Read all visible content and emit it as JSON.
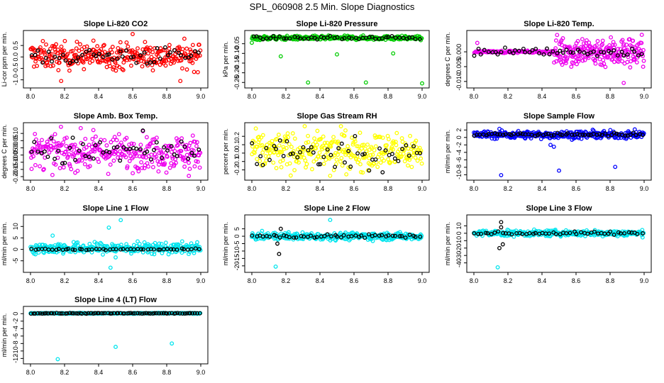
{
  "page_title": "SPL_060908  2.5 Min. Slope Diagnostics",
  "chart_data": [
    {
      "type": "scatter",
      "title": "Slope Li-820 CO2",
      "ylabel": "Li-cor ppm per min.",
      "xlim": [
        8.0,
        9.0
      ],
      "ylim": [
        -1.2,
        1.0
      ],
      "yticks": [
        -1.0,
        -0.5,
        0.0,
        0.5
      ],
      "ytick_labels": [
        "-1.0",
        "-0.5",
        "0.0",
        "0.5"
      ],
      "xticks": [
        8.0,
        8.2,
        8.4,
        8.6,
        8.8,
        9.0
      ],
      "xtick_labels": [
        "8.0",
        "8.2",
        "8.4",
        "8.6",
        "8.8",
        "9.0"
      ],
      "series": [
        {
          "name": "all",
          "color": "#ff0000",
          "center": 0.05,
          "spread": 0.28,
          "count": 320
        },
        {
          "name": "selected",
          "color": "#000000",
          "center": 0.05,
          "spread": 0.2,
          "count": 50
        }
      ],
      "outliers": [
        {
          "x": 8.6,
          "y": 1.0,
          "color": "#ff0000"
        },
        {
          "x": 8.18,
          "y": -1.05,
          "color": "#ff0000"
        },
        {
          "x": 8.88,
          "y": -1.05,
          "color": "#ff0000"
        }
      ]
    },
    {
      "type": "scatter",
      "title": "Slope Li-820 Pressure",
      "ylabel": "kPa per min.",
      "xlim": [
        8.0,
        9.0
      ],
      "ylim": [
        -0.26,
        0.0
      ],
      "yticks": [
        -0.25,
        -0.2,
        -0.15,
        -0.1,
        -0.05
      ],
      "ytick_labels": [
        "-0.25",
        "-0.20",
        "-0.15",
        "-0.10",
        "-0.05"
      ],
      "xticks": [
        8.0,
        8.2,
        8.4,
        8.6,
        8.8,
        9.0
      ],
      "xtick_labels": [
        "8.0",
        "8.2",
        "8.4",
        "8.6",
        "8.8",
        "9.0"
      ],
      "series": [
        {
          "name": "all",
          "color": "#00cc00",
          "center": -0.02,
          "spread": 0.005,
          "count": 320
        },
        {
          "name": "selected",
          "color": "#000000",
          "center": -0.02,
          "spread": 0.004,
          "count": 50
        }
      ],
      "outliers": [
        {
          "x": 8.17,
          "y": -0.115,
          "color": "#00cc00"
        },
        {
          "x": 8.33,
          "y": -0.25,
          "color": "#00cc00"
        },
        {
          "x": 8.5,
          "y": -0.105,
          "color": "#00cc00"
        },
        {
          "x": 8.67,
          "y": -0.25,
          "color": "#00cc00"
        },
        {
          "x": 8.83,
          "y": -0.1,
          "color": "#00cc00"
        },
        {
          "x": 9.0,
          "y": -0.255,
          "color": "#00cc00"
        },
        {
          "x": 8.0,
          "y": -0.045,
          "color": "#00cc00"
        }
      ]
    },
    {
      "type": "scatter",
      "title": "Slope Li-820 Temp.",
      "ylabel": "degrees C per min.",
      "xlim": [
        8.0,
        9.0
      ],
      "ylim": [
        -0.011,
        0.006
      ],
      "yticks": [
        -0.01,
        -0.005,
        0.0
      ],
      "ytick_labels": [
        "-0.010",
        "-0.005",
        "0.000"
      ],
      "xticks": [
        8.0,
        8.2,
        8.4,
        8.6,
        8.8,
        9.0
      ],
      "xtick_labels": [
        "8.0",
        "8.2",
        "8.4",
        "8.6",
        "8.8",
        "9.0"
      ],
      "series": [
        {
          "name": "flat",
          "color": "#ee00ee",
          "center": 0.0,
          "spread": 0.0002,
          "count": 90,
          "x_range": [
            8.0,
            8.47
          ]
        },
        {
          "name": "all",
          "color": "#ee00ee",
          "center": 0.0,
          "spread": 0.0025,
          "count": 230,
          "x_range": [
            8.47,
            9.0
          ]
        },
        {
          "name": "selected",
          "color": "#000000",
          "center": 0.0,
          "spread": 0.0008,
          "count": 50
        }
      ],
      "outliers": [
        {
          "x": 8.88,
          "y": -0.0105,
          "color": "#ee00ee"
        },
        {
          "x": 8.02,
          "y": 0.003,
          "color": "#ee00ee"
        }
      ]
    },
    {
      "type": "scatter",
      "title": "Slope Amb. Box Temp.",
      "ylabel": "degrees C per min.",
      "xlim": [
        8.0,
        9.0
      ],
      "ylim": [
        -0.2,
        0.15
      ],
      "yticks": [
        -0.2,
        -0.15,
        -0.1,
        -0.05,
        0.0,
        0.05,
        0.1
      ],
      "ytick_labels": [
        "-0.20",
        "-0.15",
        "-0.10",
        "-0.05",
        "0.00",
        "0.05",
        "0.10"
      ],
      "xticks": [
        8.0,
        8.2,
        8.4,
        8.6,
        8.8,
        9.0
      ],
      "xtick_labels": [
        "8.0",
        "8.2",
        "8.4",
        "8.6",
        "8.8",
        "9.0"
      ],
      "series": [
        {
          "name": "all",
          "color": "#ee00ee",
          "center": -0.03,
          "spread": 0.06,
          "count": 320
        },
        {
          "name": "selected",
          "color": "#000000",
          "center": -0.03,
          "spread": 0.05,
          "count": 50
        }
      ],
      "outliers": [
        {
          "x": 8.66,
          "y": 0.12,
          "color": "#000000"
        },
        {
          "x": 8.93,
          "y": -0.195,
          "color": "#ee00ee"
        }
      ]
    },
    {
      "type": "scatter",
      "title": "Slope Gas Stream RH",
      "ylabel": "percent per min.",
      "xlim": [
        8.0,
        9.0
      ],
      "ylim": [
        -0.28,
        0.32
      ],
      "yticks": [
        -0.2,
        -0.1,
        0.0,
        0.1,
        0.2
      ],
      "ytick_labels": [
        "-0.2",
        "-0.1",
        "0.0",
        "0.1",
        "0.2"
      ],
      "xticks": [
        8.0,
        8.2,
        8.4,
        8.6,
        8.8,
        9.0
      ],
      "xtick_labels": [
        "8.0",
        "8.2",
        "8.4",
        "8.6",
        "8.8",
        "9.0"
      ],
      "series": [
        {
          "name": "all",
          "color": "#ffff00",
          "center": 0.02,
          "spread": 0.11,
          "count": 320
        },
        {
          "name": "selected",
          "color": "#000000",
          "center": 0.0,
          "spread": 0.09,
          "count": 50
        }
      ],
      "outliers": [
        {
          "x": 8.55,
          "y": 0.27,
          "color": "#ffff00"
        },
        {
          "x": 8.46,
          "y": -0.27,
          "color": "#ffff00"
        }
      ]
    },
    {
      "type": "scatter",
      "title": "Slope Sample Flow",
      "ylabel": "ml/min per min.",
      "xlim": [
        8.0,
        9.0
      ],
      "ylim": [
        -10.5,
        3.0
      ],
      "yticks": [
        -10,
        -8,
        -6,
        -4,
        -2,
        0,
        2
      ],
      "ytick_labels": [
        "-10",
        "-8",
        "-6",
        "-4",
        "-2",
        "0",
        "2"
      ],
      "xticks": [
        8.0,
        8.2,
        8.4,
        8.6,
        8.8,
        9.0
      ],
      "xtick_labels": [
        "8.0",
        "8.2",
        "8.4",
        "8.6",
        "8.8",
        "9.0"
      ],
      "series": [
        {
          "name": "all",
          "color": "#0000ff",
          "center": 0.7,
          "spread": 0.5,
          "count": 320
        },
        {
          "name": "selected",
          "color": "#000000",
          "center": 0.8,
          "spread": 0.2,
          "count": 60
        }
      ],
      "outliers": [
        {
          "x": 8.16,
          "y": -10.1,
          "color": "#0000ff"
        },
        {
          "x": 8.5,
          "y": -8.9,
          "color": "#0000ff"
        },
        {
          "x": 8.83,
          "y": -7.9,
          "color": "#0000ff"
        },
        {
          "x": 8.45,
          "y": -2.0,
          "color": "#0000ff"
        },
        {
          "x": 8.47,
          "y": -2.5,
          "color": "#0000ff"
        },
        {
          "x": 8.15,
          "y": 2.3,
          "color": "#0000ff"
        }
      ]
    },
    {
      "type": "scatter",
      "title": "Slope Line 1 Flow",
      "ylabel": "ml/min per min.",
      "xlim": [
        8.0,
        9.0
      ],
      "ylim": [
        -8.5,
        13.5
      ],
      "yticks": [
        -5,
        0,
        5,
        10
      ],
      "ytick_labels": [
        "-5",
        "0",
        "5",
        "10"
      ],
      "xticks": [
        8.0,
        8.2,
        8.4,
        8.6,
        8.8,
        9.0
      ],
      "xtick_labels": [
        "8.0",
        "8.2",
        "8.4",
        "8.6",
        "8.8",
        "9.0"
      ],
      "series": [
        {
          "name": "all",
          "color": "#00e5ee",
          "center": 0.5,
          "spread": 1.2,
          "count": 320
        },
        {
          "name": "selected",
          "color": "#000000",
          "center": 0.0,
          "spread": 0.15,
          "count": 50
        }
      ],
      "outliers": [
        {
          "x": 8.53,
          "y": 12.8,
          "color": "#00e5ee"
        },
        {
          "x": 8.47,
          "y": -8.0,
          "color": "#00e5ee"
        },
        {
          "x": 8.46,
          "y": 9.5,
          "color": "#00e5ee"
        },
        {
          "x": 8.13,
          "y": 6.0,
          "color": "#00e5ee"
        },
        {
          "x": 8.5,
          "y": -3.5,
          "color": "#00e5ee"
        }
      ]
    },
    {
      "type": "scatter",
      "title": "Slope Line 2 Flow",
      "ylabel": "ml/min per min.",
      "xlim": [
        8.0,
        9.0
      ],
      "ylim": [
        -22,
        12
      ],
      "yticks": [
        -20,
        -15,
        -10,
        -5,
        0,
        5
      ],
      "ytick_labels": [
        "-20",
        "-15",
        "-10",
        "-5",
        "0",
        "5"
      ],
      "xticks": [
        8.0,
        8.2,
        8.4,
        8.6,
        8.8,
        9.0
      ],
      "xtick_labels": [
        "8.0",
        "8.2",
        "8.4",
        "8.6",
        "8.8",
        "9.0"
      ],
      "series": [
        {
          "name": "all",
          "color": "#00e5ee",
          "center": 0.0,
          "spread": 1.2,
          "count": 320
        },
        {
          "name": "selected",
          "color": "#000000",
          "center": 0.0,
          "spread": 0.6,
          "count": 50
        }
      ],
      "outliers": [
        {
          "x": 8.14,
          "y": -20.5,
          "color": "#00e5ee"
        },
        {
          "x": 8.46,
          "y": 11.0,
          "color": "#00e5ee"
        },
        {
          "x": 8.16,
          "y": -12.0,
          "color": "#000000"
        },
        {
          "x": 8.17,
          "y": 5.0,
          "color": "#000000"
        },
        {
          "x": 8.15,
          "y": -5.0,
          "color": "#000000"
        }
      ]
    },
    {
      "type": "scatter",
      "title": "Slope Line 3 Flow",
      "ylabel": "ml/min per min.",
      "xlim": [
        8.0,
        9.0
      ],
      "ylim": [
        -48,
        20
      ],
      "yticks": [
        -40,
        -30,
        -20,
        -10,
        0,
        10
      ],
      "ytick_labels": [
        "-40",
        "-30",
        "-20",
        "-10",
        "0",
        "10"
      ],
      "xticks": [
        8.0,
        8.2,
        8.4,
        8.6,
        8.8,
        9.0
      ],
      "xtick_labels": [
        "8.0",
        "8.2",
        "8.4",
        "8.6",
        "8.8",
        "9.0"
      ],
      "series": [
        {
          "name": "all",
          "color": "#00e5ee",
          "center": 0.0,
          "spread": 2.0,
          "count": 320
        },
        {
          "name": "selected",
          "color": "#000000",
          "center": 0.0,
          "spread": 1.0,
          "count": 50
        }
      ],
      "outliers": [
        {
          "x": 8.14,
          "y": -46,
          "color": "#00e5ee"
        },
        {
          "x": 8.16,
          "y": 15,
          "color": "#000000"
        },
        {
          "x": 8.17,
          "y": -15,
          "color": "#000000"
        },
        {
          "x": 8.15,
          "y": -20,
          "color": "#000000"
        },
        {
          "x": 8.16,
          "y": 8,
          "color": "#000000"
        }
      ]
    },
    {
      "type": "scatter",
      "title": "Slope Line 4 (LT) Flow",
      "ylabel": "ml/min per min.",
      "xlim": [
        8.0,
        9.0
      ],
      "ylim": [
        -12.5,
        1.0
      ],
      "yticks": [
        -12,
        -10,
        -8,
        -6,
        -4,
        -2,
        0
      ],
      "ytick_labels": [
        "-12",
        "-10",
        "-8",
        "-6",
        "-4",
        "-2",
        "0"
      ],
      "xticks": [
        8.0,
        8.2,
        8.4,
        8.6,
        8.8,
        9.0
      ],
      "xtick_labels": [
        "8.0",
        "8.2",
        "8.4",
        "8.6",
        "8.8",
        "9.0"
      ],
      "series": [
        {
          "name": "all",
          "color": "#00e5ee",
          "center": 0.1,
          "spread": 0.05,
          "count": 320
        },
        {
          "name": "selected",
          "color": "#000000",
          "center": 0.1,
          "spread": 0.05,
          "count": 80
        }
      ],
      "outliers": [
        {
          "x": 8.16,
          "y": -12.2,
          "color": "#00e5ee"
        },
        {
          "x": 8.5,
          "y": -8.9,
          "color": "#00e5ee"
        },
        {
          "x": 8.83,
          "y": -8.0,
          "color": "#00e5ee"
        }
      ]
    }
  ]
}
